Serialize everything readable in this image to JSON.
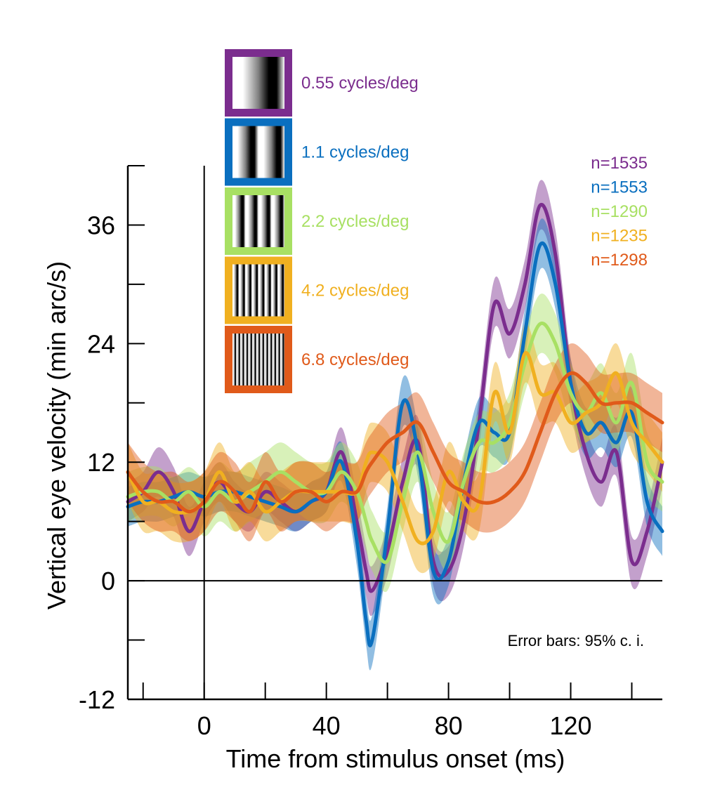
{
  "chart_data": {
    "type": "line",
    "title": "",
    "xlabel": "Time from stimulus onset (ms)",
    "ylabel": "Vertical eye velocity (min arc/s)",
    "xlim": [
      -25,
      150
    ],
    "ylim": [
      -12,
      42
    ],
    "xticks": [
      -20,
      0,
      20,
      40,
      60,
      80,
      100,
      120,
      140
    ],
    "xtick_labels": [
      {
        "value": 0,
        "label": "0"
      },
      {
        "value": 40,
        "label": "40"
      },
      {
        "value": 80,
        "label": "80"
      },
      {
        "value": 120,
        "label": "120"
      }
    ],
    "yticks": [
      -12,
      -6,
      0,
      6,
      12,
      18,
      24,
      30,
      36,
      42
    ],
    "ytick_labels": [
      {
        "value": -12,
        "label": "-12"
      },
      {
        "value": 0,
        "label": "0"
      },
      {
        "value": 12,
        "label": "12"
      },
      {
        "value": 24,
        "label": "24"
      },
      {
        "value": 36,
        "label": "36"
      }
    ],
    "grid": false,
    "reference_lines": {
      "y_zero": true,
      "x_zero": true
    },
    "annotation": "Error bars: 95% c. i.",
    "legend_placement": "top-left",
    "x": [
      -25,
      -20,
      -15,
      -10,
      -5,
      0,
      5,
      10,
      15,
      20,
      25,
      30,
      35,
      40,
      45,
      50,
      53,
      55,
      60,
      65,
      70,
      75,
      80,
      85,
      90,
      95,
      100,
      105,
      110,
      115,
      120,
      125,
      130,
      135,
      140,
      145,
      150
    ],
    "series": [
      {
        "name": "0.55 cycles/deg",
        "n_label": "n=1535",
        "color": "#7b2d8e",
        "spatial_frequency": 0.55,
        "values": [
          8,
          9,
          11,
          9,
          5,
          8,
          10,
          8,
          7,
          9,
          8,
          7,
          8,
          9,
          13,
          6,
          1,
          -1,
          3,
          10,
          14,
          2,
          1,
          6,
          16,
          28,
          25,
          30,
          38,
          33,
          20,
          13,
          10,
          13,
          2,
          5,
          12
        ],
        "ci_halfwidth": [
          2,
          2,
          2.5,
          2.5,
          2.5,
          2,
          2,
          2,
          2,
          2,
          2,
          2,
          2,
          2,
          2.5,
          2.5,
          2.5,
          2.5,
          2.5,
          2.5,
          2.5,
          2.5,
          2.5,
          2.5,
          2.5,
          2.5,
          2.5,
          2.5,
          2.5,
          2.5,
          2.5,
          2.5,
          2.5,
          2.5,
          2.5,
          2.5,
          2.5
        ]
      },
      {
        "name": "1.1 cycles/deg",
        "n_label": "n=1553",
        "color": "#0a6fbf",
        "spatial_frequency": 1.1,
        "values": [
          7.5,
          8,
          8,
          8.5,
          9,
          8.5,
          9,
          9,
          8.5,
          8,
          7.5,
          7,
          8,
          9,
          12,
          4,
          -4,
          -6,
          5,
          18,
          13,
          1,
          2,
          10,
          16,
          15,
          15,
          25,
          34,
          30,
          20,
          15,
          16,
          14,
          17,
          8,
          5
        ],
        "ci_halfwidth": [
          2,
          2,
          2,
          2,
          2,
          2,
          2,
          2,
          2,
          2,
          2,
          2,
          2,
          2,
          2,
          2.5,
          2.5,
          2.5,
          2.5,
          2.5,
          2.5,
          2.5,
          2.5,
          2.5,
          2.5,
          2.5,
          2.5,
          2.5,
          2.5,
          2.5,
          2.5,
          2.5,
          2.5,
          2.5,
          2.5,
          2.5,
          2.5
        ]
      },
      {
        "name": "2.2 cycles/deg",
        "n_label": "n=1290",
        "color": "#a8e063",
        "spatial_frequency": 2.2,
        "values": [
          8.5,
          9,
          9,
          8,
          9,
          7.5,
          9,
          8,
          9,
          10,
          11,
          10,
          9,
          9,
          11,
          9,
          6,
          4,
          2,
          8,
          13,
          7,
          4,
          10,
          14,
          14,
          16,
          22,
          26,
          24,
          19,
          17,
          19,
          16,
          20,
          12,
          10
        ],
        "ci_halfwidth": [
          2.5,
          2.5,
          2.5,
          2.5,
          2.5,
          3,
          3,
          3,
          3,
          3,
          3,
          3,
          3,
          3,
          3,
          3,
          3,
          3,
          3,
          3,
          3,
          3,
          3,
          3,
          3,
          3,
          3,
          3,
          3,
          3,
          3,
          3,
          3,
          3,
          3,
          3,
          3
        ]
      },
      {
        "name": "4.2 cycles/deg",
        "n_label": "n=1235",
        "color": "#f0b020",
        "spatial_frequency": 4.2,
        "values": [
          11,
          8,
          8,
          7,
          7,
          8,
          11,
          8,
          9,
          7,
          8,
          9,
          9,
          9,
          9,
          9,
          12,
          13,
          12,
          8,
          4,
          5,
          11,
          8,
          8,
          19,
          15,
          23,
          19,
          19,
          16,
          17,
          18,
          21,
          16,
          14,
          12
        ],
        "ci_halfwidth": [
          3,
          3,
          3,
          3,
          3,
          3,
          3,
          3,
          3,
          3,
          3,
          3,
          3,
          3,
          3,
          3,
          3,
          3,
          3,
          3,
          3,
          3,
          3,
          3,
          3,
          3,
          3,
          3,
          3,
          3,
          3,
          3,
          3,
          3,
          3,
          3,
          3
        ]
      },
      {
        "name": "6.8 cycles/deg",
        "n_label": "n=1298",
        "color": "#e05a1a",
        "spatial_frequency": 6.8,
        "values": [
          11,
          9,
          8,
          8,
          7,
          8,
          10,
          9,
          7,
          10,
          8,
          9,
          9,
          8,
          9,
          9,
          11,
          12,
          14,
          15,
          16,
          13,
          10,
          9,
          8,
          8,
          9,
          11,
          15,
          19,
          21,
          20,
          18,
          18,
          18,
          17,
          16
        ],
        "ci_halfwidth": [
          3,
          3,
          3,
          3,
          3,
          3,
          3,
          3,
          3,
          3,
          3,
          3,
          3,
          3,
          3,
          3,
          3,
          3,
          3,
          3,
          3,
          3,
          3,
          3,
          3,
          3,
          3,
          3,
          3,
          3,
          3,
          3,
          3,
          3,
          3,
          3,
          3
        ]
      }
    ]
  }
}
